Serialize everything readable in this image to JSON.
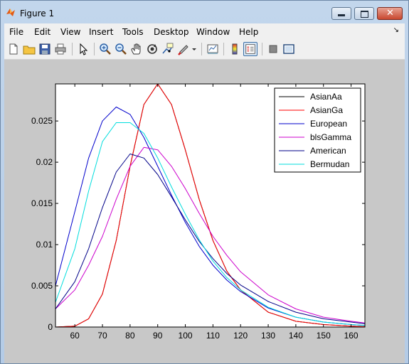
{
  "window": {
    "title": "Figure 1"
  },
  "menu": [
    "File",
    "Edit",
    "View",
    "Insert",
    "Tools",
    "Desktop",
    "Window",
    "Help"
  ],
  "toolbar": {
    "icons": [
      "new-file-icon",
      "open-folder-icon",
      "save-icon",
      "print-icon",
      "pointer-icon",
      "zoom-in-icon",
      "zoom-out-icon",
      "pan-hand-icon",
      "rotate-3d-icon",
      "data-cursor-icon",
      "brush-icon",
      "brush-dropdown-icon",
      "link-plot-icon",
      "colorbar-icon",
      "legend-icon",
      "hide-plot-tools-icon",
      "show-plot-tools-icon"
    ]
  },
  "chart_data": {
    "type": "line",
    "xlim": [
      53,
      165
    ],
    "ylim": [
      0,
      0.0295
    ],
    "xticks": [
      60,
      70,
      80,
      90,
      100,
      110,
      120,
      130,
      140,
      150,
      160
    ],
    "yticks": [
      0,
      0.005,
      0.01,
      0.015,
      0.02,
      0.025
    ],
    "ytick_labels": [
      "0",
      "0.005",
      "0.01",
      "0.015",
      "0.02",
      "0.025"
    ],
    "legend_position": "top-right",
    "series": [
      {
        "name": "AsianAa",
        "color": "#000000",
        "x": [
          53,
          60,
          65,
          70,
          75,
          80,
          85,
          90,
          95,
          100,
          105,
          110,
          115,
          120,
          130,
          140,
          150,
          160,
          165
        ],
        "y": [
          0,
          0.0001,
          0.001,
          0.004,
          0.0105,
          0.0195,
          0.027,
          0.0295,
          0.027,
          0.0215,
          0.0155,
          0.0105,
          0.0068,
          0.0045,
          0.0018,
          0.0007,
          0.0003,
          0.0001,
          5e-05
        ]
      },
      {
        "name": "AsianGa",
        "color": "#ff0000",
        "x": [
          53,
          60,
          65,
          70,
          75,
          80,
          85,
          90,
          95,
          100,
          105,
          110,
          115,
          120,
          130,
          140,
          150,
          160,
          165
        ],
        "y": [
          0,
          0.0001,
          0.001,
          0.004,
          0.0105,
          0.0195,
          0.027,
          0.0295,
          0.027,
          0.0215,
          0.0155,
          0.0105,
          0.0068,
          0.0045,
          0.0018,
          0.0007,
          0.0003,
          0.0001,
          5e-05
        ]
      },
      {
        "name": "European",
        "color": "#0000cc",
        "x": [
          53,
          60,
          65,
          70,
          75,
          80,
          85,
          90,
          95,
          100,
          105,
          110,
          115,
          120,
          130,
          140,
          150,
          160,
          165
        ],
        "y": [
          0.005,
          0.014,
          0.0205,
          0.025,
          0.0267,
          0.0258,
          0.023,
          0.0195,
          0.016,
          0.0127,
          0.0098,
          0.0075,
          0.0057,
          0.0043,
          0.0023,
          0.0012,
          0.0006,
          0.0003,
          0.0002
        ]
      },
      {
        "name": "blsGamma",
        "color": "#cc00cc",
        "x": [
          53,
          60,
          65,
          70,
          75,
          80,
          85,
          90,
          95,
          100,
          105,
          110,
          115,
          120,
          130,
          140,
          150,
          160,
          165
        ],
        "y": [
          0.0022,
          0.0045,
          0.0075,
          0.011,
          0.0155,
          0.0195,
          0.0218,
          0.0215,
          0.0195,
          0.0168,
          0.0138,
          0.011,
          0.0087,
          0.0067,
          0.0039,
          0.0022,
          0.0012,
          0.0007,
          0.0005
        ]
      },
      {
        "name": "American",
        "color": "#000088",
        "x": [
          53,
          60,
          65,
          70,
          75,
          80,
          85,
          90,
          95,
          100,
          105,
          110,
          115,
          120,
          130,
          140,
          150,
          160,
          165
        ],
        "y": [
          0.0022,
          0.0055,
          0.0095,
          0.0145,
          0.0188,
          0.021,
          0.0205,
          0.0185,
          0.0158,
          0.013,
          0.0104,
          0.0083,
          0.0065,
          0.0051,
          0.0031,
          0.0018,
          0.001,
          0.0006,
          0.0004
        ]
      },
      {
        "name": "Bermudan",
        "color": "#00dddd",
        "x": [
          53,
          60,
          65,
          70,
          75,
          80,
          85,
          90,
          95,
          100,
          105,
          110,
          115,
          120,
          130,
          140,
          150,
          160,
          165
        ],
        "y": [
          0.003,
          0.0095,
          0.0165,
          0.0225,
          0.0248,
          0.0248,
          0.0235,
          0.0205,
          0.017,
          0.0137,
          0.0106,
          0.008,
          0.006,
          0.0045,
          0.0024,
          0.0012,
          0.0006,
          0.0003,
          0.0002
        ]
      }
    ]
  }
}
